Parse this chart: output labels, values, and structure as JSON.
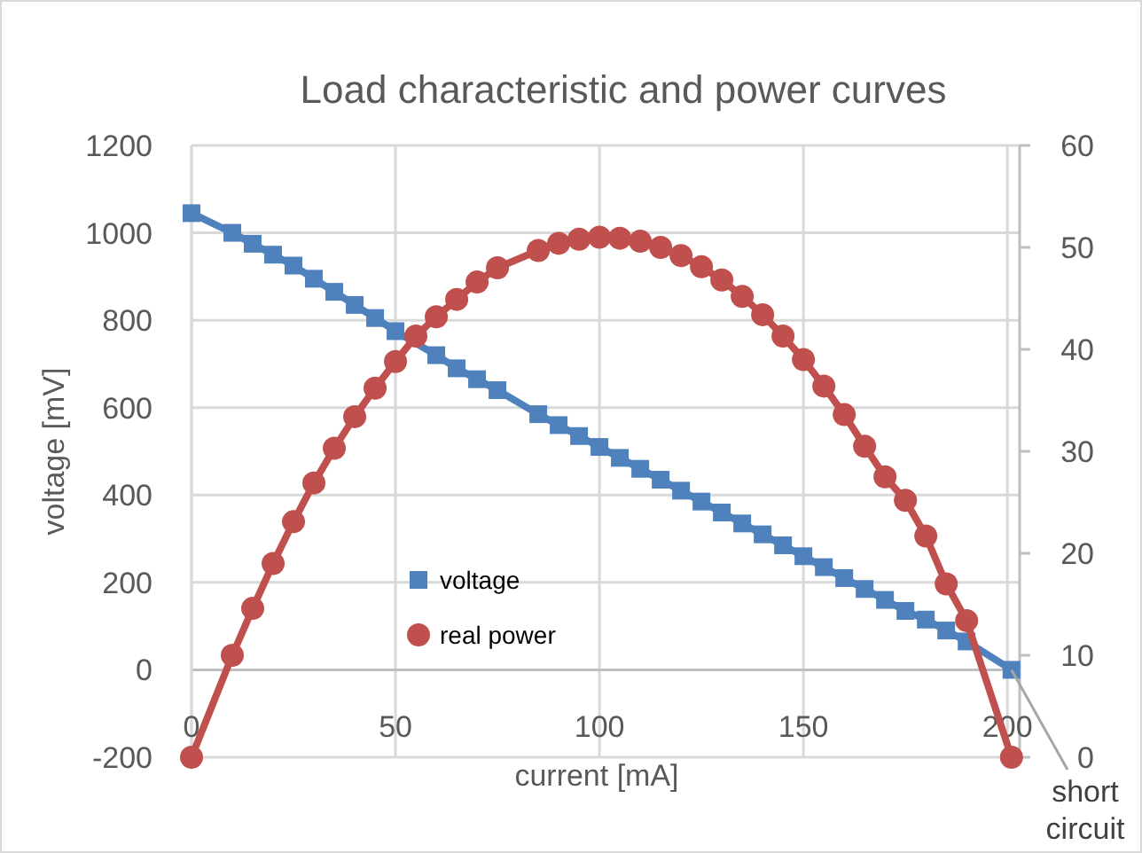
{
  "chart_data": {
    "type": "line",
    "title": "Load characteristic and power curves",
    "xlabel": "current [mA]",
    "ylabel": "voltage [mV]",
    "x": [
      0,
      10,
      15,
      20,
      25,
      30,
      35,
      40,
      45,
      50,
      55,
      60,
      65,
      70,
      75,
      85,
      90,
      95,
      100,
      105,
      110,
      115,
      120,
      125,
      130,
      135,
      140,
      145,
      150,
      155,
      160,
      165,
      170,
      175,
      180,
      185,
      190,
      201
    ],
    "series": [
      {
        "name": "voltage",
        "color": "#4f81bd",
        "marker": "square",
        "values": [
          1045,
          1000,
          975,
          950,
          925,
          895,
          865,
          835,
          805,
          775,
          null,
          720,
          690,
          665,
          640,
          585,
          560,
          535,
          510,
          485,
          460,
          435,
          410,
          385,
          360,
          335,
          310,
          285,
          260,
          235,
          210,
          185,
          160,
          135,
          115,
          90,
          65,
          0
        ]
      },
      {
        "name": "real power",
        "color": "#c0504d",
        "marker": "circle",
        "axis": "y2",
        "values": [
          0,
          10.0,
          14.6,
          19.0,
          23.1,
          26.9,
          30.3,
          33.4,
          36.2,
          38.8,
          41.3,
          43.2,
          44.9,
          46.6,
          48.0,
          49.7,
          50.4,
          50.8,
          51.0,
          50.9,
          50.6,
          50.0,
          49.2,
          48.1,
          46.8,
          45.2,
          43.4,
          41.3,
          39.0,
          36.4,
          33.6,
          30.5,
          27.5,
          25.2,
          21.7,
          17.0,
          13.4,
          0
        ]
      }
    ],
    "xlim": [
      0,
      203
    ],
    "xticks": [
      0,
      50,
      100,
      150,
      200
    ],
    "ylim": [
      -200,
      1200
    ],
    "yticks": [
      -200,
      0,
      200,
      400,
      600,
      800,
      1000,
      1200
    ],
    "y2lim": [
      0,
      60
    ],
    "y2ticks": [
      0,
      10,
      20,
      30,
      40,
      50,
      60
    ],
    "grid": true,
    "legend": "bottom left",
    "line_style": "solid",
    "annotations": [
      {
        "text": "short circuit",
        "x": 201,
        "y": 0
      }
    ]
  }
}
